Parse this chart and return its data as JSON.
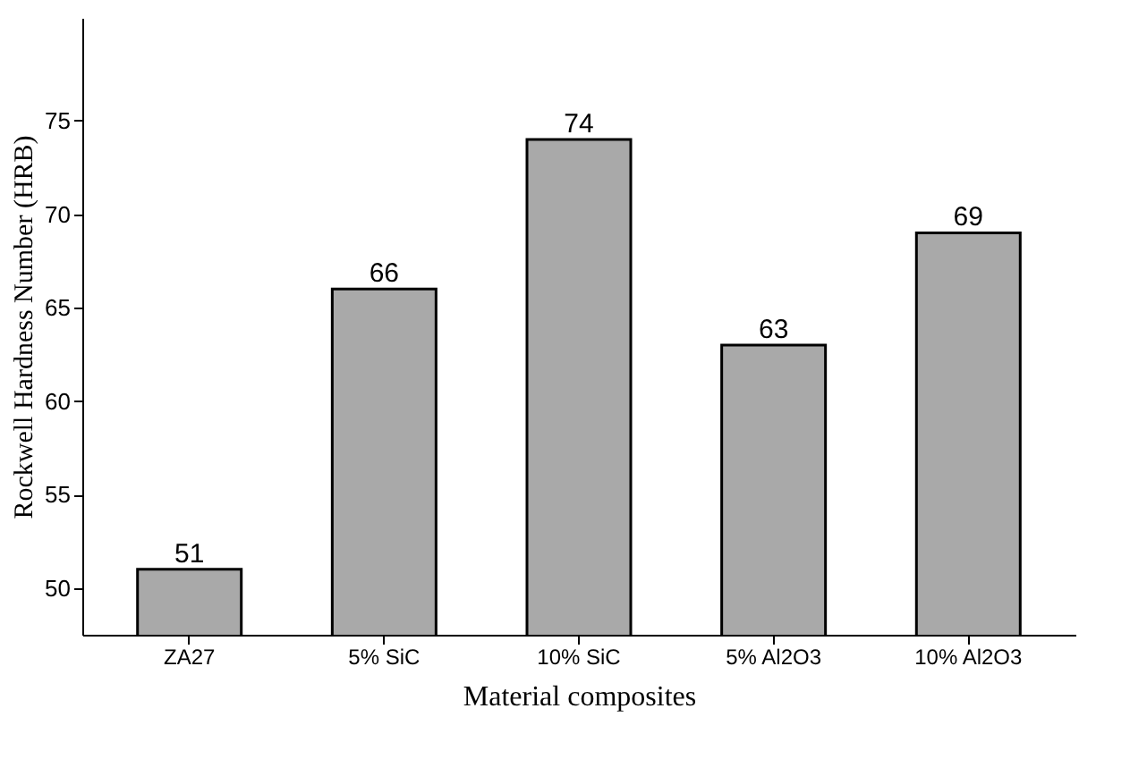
{
  "chart_data": {
    "type": "bar",
    "xlabel": "Material composites",
    "ylabel": "Rockwell Hardness Number (HRB)",
    "categories": [
      "ZA27",
      "5% SiC",
      "10% SiC",
      "5% Al2O3",
      "10% Al2O3"
    ],
    "values": [
      51,
      66,
      74,
      63,
      69
    ],
    "color": "#a9a9a9",
    "ylim": [
      47.5,
      80.5
    ],
    "yticks": [
      50,
      55,
      60,
      65,
      70,
      75
    ],
    "grid": false,
    "data_labels": true
  }
}
